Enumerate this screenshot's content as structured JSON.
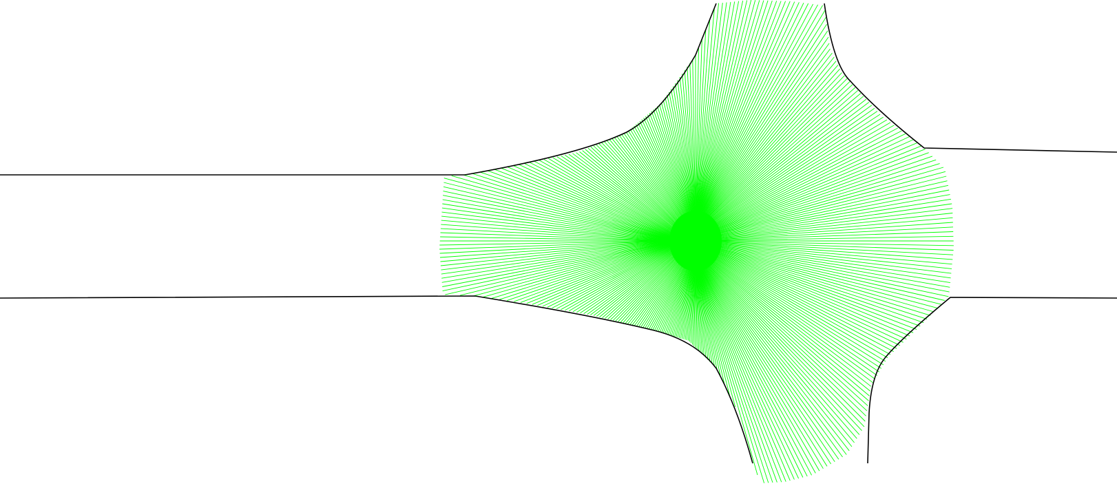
{
  "diagram": {
    "type": "road-intersection-ray-cast",
    "colors": {
      "background": "#ffffff",
      "road_edge": "#000000",
      "rays": "#00ff00"
    },
    "ray_count": 360
  }
}
